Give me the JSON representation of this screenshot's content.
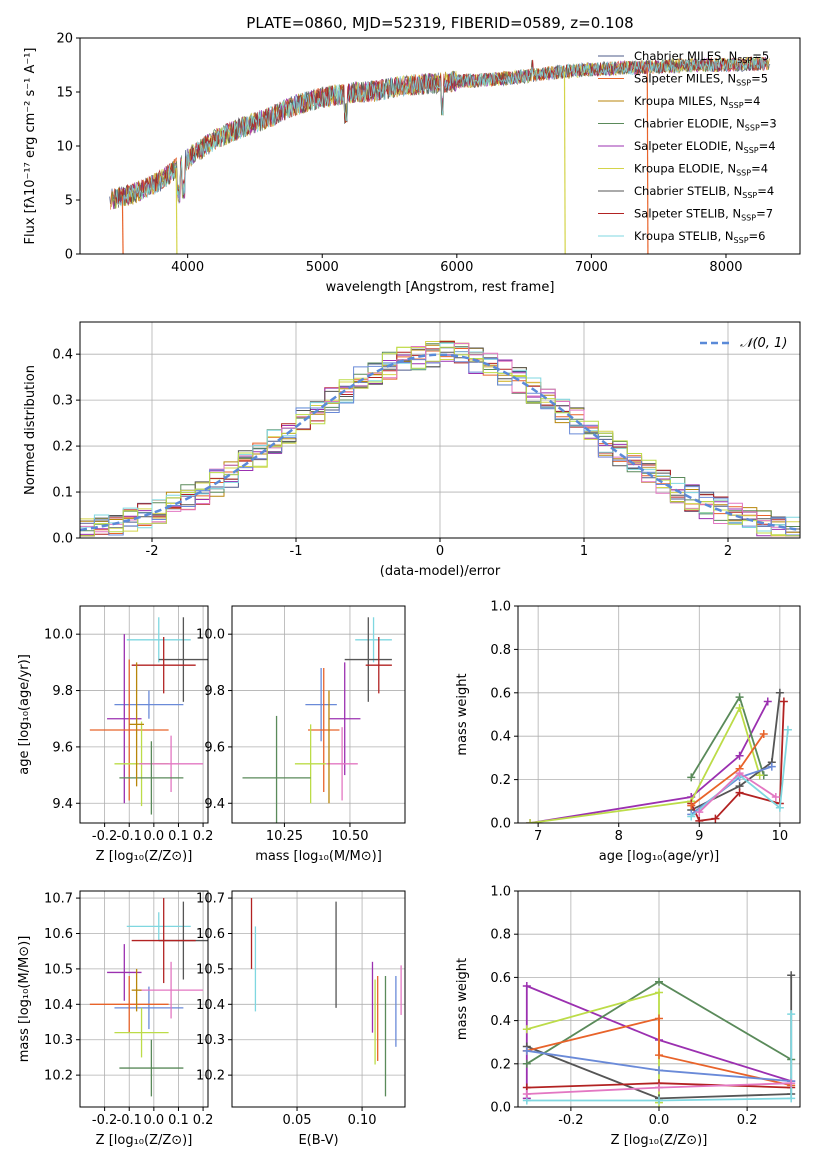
{
  "figure": {
    "title": "PLATE=0860, MJD=52319, FIBERID=0589, z=0.108"
  },
  "chart_data": [
    {
      "type": "line",
      "panel": "spectrum",
      "xlabel": "wavelength [Angstrom, rest frame]",
      "ylabel": "Flux [fλ10⁻¹⁷ erg cm⁻² s⁻¹ A⁻¹]",
      "xlim": [
        3200,
        8550
      ],
      "ylim": [
        0,
        20
      ],
      "xticks": [
        4000,
        5000,
        6000,
        7000,
        8000
      ],
      "yticks": [
        0,
        5,
        10,
        15,
        20
      ],
      "grid": false,
      "legend": "top-right",
      "continuum_x": [
        3420,
        3600,
        3800,
        4000,
        4200,
        4400,
        4600,
        4800,
        5000,
        5200,
        5400,
        5600,
        5800,
        6000,
        6200,
        6400,
        6600,
        6800,
        7000,
        7200,
        7400,
        7600,
        7800,
        8000,
        8200,
        8330
      ],
      "continuum_y": [
        5.0,
        5.6,
        6.8,
        8.8,
        10.6,
        11.7,
        12.6,
        13.8,
        14.5,
        14.9,
        15.1,
        15.6,
        15.8,
        16.0,
        16.1,
        16.3,
        16.6,
        16.9,
        17.1,
        17.2,
        17.3,
        17.4,
        17.5,
        17.5,
        17.6,
        17.6
      ],
      "series": [
        {
          "name": "Chabrier MILES, N_SSP=5",
          "legend_main": "Chabrier MILES, N",
          "sub": "SSP",
          "legend_tail": "=5",
          "color": "#4e5b8a"
        },
        {
          "name": "Salpeter MILES, N_SSP=5",
          "legend_main": "Salpeter MILES, N",
          "sub": "SSP",
          "legend_tail": "=5",
          "color": "#e8632a"
        },
        {
          "name": "Kroupa MILES, N_SSP=4",
          "legend_main": "Kroupa MILES, N",
          "sub": "SSP",
          "legend_tail": "=4",
          "color": "#b8860b"
        },
        {
          "name": "Chabrier ELODIE, N_SSP=3",
          "legend_main": "Chabrier ELODIE, N",
          "sub": "SSP",
          "legend_tail": "=3",
          "color": "#5a8a5a"
        },
        {
          "name": "Salpeter ELODIE, N_SSP=4",
          "legend_main": "Salpeter ELODIE, N",
          "sub": "SSP",
          "legend_tail": "=4",
          "color": "#9b30b0"
        },
        {
          "name": "Kroupa ELODIE, N_SSP=4",
          "legend_main": "Kroupa ELODIE, N",
          "sub": "SSP",
          "legend_tail": "=4",
          "color": "#d4d44a"
        },
        {
          "name": "Chabrier STELIB, N_SSP=4",
          "legend_main": "Chabrier STELIB, N",
          "sub": "SSP",
          "legend_tail": "=4",
          "color": "#555555"
        },
        {
          "name": "Salpeter STELIB, N_SSP=7",
          "legend_main": "Salpeter STELIB, N",
          "sub": "SSP",
          "legend_tail": "=7",
          "color": "#b22222"
        },
        {
          "name": "Kroupa STELIB, N_SSP=6",
          "legend_main": "Kroupa STELIB, N",
          "sub": "SSP",
          "legend_tail": "=6",
          "color": "#7fd7e0"
        }
      ],
      "dropouts": [
        {
          "x": 3515,
          "color": "#e8632a"
        },
        {
          "x": 3915,
          "color": "#d4d44a"
        },
        {
          "x": 6800,
          "color": "#d4d44a"
        },
        {
          "x": 7415,
          "color": "#e8632a"
        }
      ]
    },
    {
      "type": "bar",
      "panel": "residual-histogram",
      "xlabel": "(data-model)/error",
      "ylabel": "Normed distribution",
      "xlim": [
        -2.5,
        2.5
      ],
      "ylim": [
        0,
        0.47
      ],
      "xticks": [
        -2,
        -1,
        0,
        1,
        2
      ],
      "yticks": [
        0.0,
        0.1,
        0.2,
        0.3,
        0.4
      ],
      "grid": true,
      "legend": "top-right",
      "bin_width": 0.1,
      "reference": {
        "label": "𝒩(0, 1)",
        "type": "gaussian",
        "mean": 0,
        "sigma": 1,
        "color": "#5a8ad8"
      },
      "histogram_colors": [
        "#4e5b8a",
        "#e8632a",
        "#b8860b",
        "#5a8a5a",
        "#9b30b0",
        "#d4d44a",
        "#555555",
        "#b22222",
        "#7fd7e0",
        "#e377c2",
        "#6a8ad8",
        "#bcdc48"
      ]
    },
    {
      "type": "scatter",
      "panel": "age-vs-Z",
      "xlabel": "Z [log₁₀(Z/Z⊙)]",
      "ylabel": "age  [log₁₀(age/yr)]",
      "xlim": [
        -0.3,
        0.22
      ],
      "ylim": [
        9.33,
        10.1
      ],
      "xticks": [
        -0.2,
        -0.1,
        0.0,
        0.1,
        0.2
      ],
      "yticks": [
        9.4,
        9.6,
        9.8,
        10.0
      ],
      "grid": true,
      "points": [
        {
          "x": 0.02,
          "xerr": 0.13,
          "y": 9.98,
          "yerr": 0.08,
          "color": "#7fd7e0"
        },
        {
          "x": 0.12,
          "xerr": 0.1,
          "y": 9.91,
          "yerr": 0.15,
          "color": "#555555"
        },
        {
          "x": 0.04,
          "xerr": 0.13,
          "y": 9.89,
          "yerr": 0.1,
          "color": "#b22222"
        },
        {
          "x": -0.02,
          "xerr": 0.14,
          "y": 9.75,
          "yerr": 0.05,
          "color": "#6a8ad8"
        },
        {
          "x": -0.12,
          "xerr": 0.07,
          "y": 9.7,
          "yerr": 0.3,
          "color": "#9b30b0"
        },
        {
          "x": -0.1,
          "xerr": 0.16,
          "y": 9.66,
          "yerr": 0.25,
          "color": "#e8632a"
        },
        {
          "x": -0.05,
          "xerr": 0.11,
          "y": 9.54,
          "yerr": 0.15,
          "color": "#bcdc48"
        },
        {
          "x": 0.07,
          "xerr": 0.13,
          "y": 9.54,
          "yerr": 0.1,
          "color": "#e377c2"
        },
        {
          "x": -0.01,
          "xerr": 0.13,
          "y": 9.49,
          "yerr": 0.13,
          "color": "#5a8a5a"
        },
        {
          "x": -0.07,
          "xerr": 0.03,
          "y": 9.68,
          "yerr": 0.22,
          "color": "#b8860b"
        }
      ]
    },
    {
      "type": "scatter",
      "panel": "age-vs-mass",
      "xlabel": "mass [log₁₀(M/M⊙)]",
      "ylabel": "",
      "xlim": [
        10.05,
        10.71
      ],
      "ylim": [
        9.33,
        10.1
      ],
      "xticks": [
        10.25,
        10.5
      ],
      "xtick_labels": [
        "10.25",
        "10.50"
      ],
      "yticks": [
        9.4,
        9.6,
        9.8,
        10.0
      ],
      "grid": true,
      "points": [
        {
          "x": 10.59,
          "xerr": 0.07,
          "y": 9.98,
          "yerr": 0.08,
          "color": "#7fd7e0"
        },
        {
          "x": 10.57,
          "xerr": 0.09,
          "y": 9.91,
          "yerr": 0.15,
          "color": "#555555"
        },
        {
          "x": 10.61,
          "xerr": 0.05,
          "y": 9.89,
          "yerr": 0.1,
          "color": "#b22222"
        },
        {
          "x": 10.39,
          "xerr": 0.06,
          "y": 9.75,
          "yerr": 0.13,
          "color": "#6a8ad8"
        },
        {
          "x": 10.48,
          "xerr": 0.06,
          "y": 9.7,
          "yerr": 0.2,
          "color": "#9b30b0"
        },
        {
          "x": 10.4,
          "xerr": 0.06,
          "y": 9.66,
          "yerr": 0.22,
          "color": "#e8632a"
        },
        {
          "x": 10.35,
          "xerr": 0.06,
          "y": 9.54,
          "yerr": 0.14,
          "color": "#bcdc48"
        },
        {
          "x": 10.47,
          "xerr": 0.06,
          "y": 9.54,
          "yerr": 0.13,
          "color": "#e377c2"
        },
        {
          "x": 10.22,
          "xerr": 0.13,
          "y": 9.49,
          "yerr": 0.22,
          "color": "#5a8a5a"
        },
        {
          "x": 10.42,
          "xerr": 0.0,
          "y": 9.6,
          "yerr": 0.2,
          "color": "#b8860b"
        }
      ]
    },
    {
      "type": "line",
      "panel": "mass-weight-vs-age",
      "xlabel": "age  [log₁₀(age/yr)]",
      "ylabel": "mass weight",
      "xlim": [
        6.75,
        10.25
      ],
      "ylim": [
        0,
        1
      ],
      "xticks": [
        7,
        8,
        9,
        10
      ],
      "yticks": [
        0.0,
        0.2,
        0.4,
        0.6,
        0.8,
        1.0
      ],
      "grid": true,
      "series": [
        {
          "color": "#9b30b0",
          "x": [
            6.9,
            8.9,
            9.5,
            9.85
          ],
          "y": [
            0.0,
            0.12,
            0.31,
            0.56
          ]
        },
        {
          "color": "#5a8a5a",
          "x": [
            8.9,
            9.5,
            9.8
          ],
          "y": [
            0.21,
            0.58,
            0.22
          ]
        },
        {
          "color": "#bcdc48",
          "x": [
            6.9,
            8.9,
            9.5,
            9.75
          ],
          "y": [
            0.0,
            0.1,
            0.53,
            0.22
          ]
        },
        {
          "color": "#555555",
          "x": [
            8.9,
            9.5,
            9.9,
            10.0
          ],
          "y": [
            0.06,
            0.17,
            0.28,
            0.6
          ]
        },
        {
          "color": "#b22222",
          "x": [
            8.9,
            9.0,
            9.2,
            9.5,
            10.0,
            10.05
          ],
          "y": [
            0.09,
            0.01,
            0.02,
            0.14,
            0.09,
            0.56
          ]
        },
        {
          "color": "#e8632a",
          "x": [
            8.9,
            9.5,
            9.8
          ],
          "y": [
            0.08,
            0.25,
            0.41
          ]
        },
        {
          "color": "#6a8ad8",
          "x": [
            8.9,
            9.5,
            9.9
          ],
          "y": [
            0.04,
            0.21,
            0.26
          ]
        },
        {
          "color": "#7fd7e0",
          "x": [
            8.9,
            9.5,
            10.0,
            10.1
          ],
          "y": [
            0.03,
            0.22,
            0.07,
            0.43
          ]
        },
        {
          "color": "#e377c2",
          "x": [
            9.0,
            9.5,
            9.95
          ],
          "y": [
            0.05,
            0.23,
            0.12
          ]
        }
      ]
    },
    {
      "type": "scatter",
      "panel": "mass-vs-Z",
      "xlabel": "Z [log₁₀(Z/Z⊙)]",
      "ylabel": "mass [log₁₀(M/M⊙)]",
      "xlim": [
        -0.3,
        0.22
      ],
      "ylim": [
        10.11,
        10.72
      ],
      "xticks": [
        -0.2,
        -0.1,
        0.0,
        0.1,
        0.2
      ],
      "yticks": [
        10.2,
        10.3,
        10.4,
        10.5,
        10.6,
        10.7
      ],
      "grid": true,
      "points": [
        {
          "x": 0.02,
          "xerr": 0.13,
          "y": 10.62,
          "yerr": 0.04,
          "color": "#7fd7e0"
        },
        {
          "x": 0.12,
          "xerr": 0.1,
          "y": 10.58,
          "yerr": 0.11,
          "color": "#555555"
        },
        {
          "x": 0.04,
          "xerr": 0.13,
          "y": 10.58,
          "yerr": 0.12,
          "color": "#b22222"
        },
        {
          "x": -0.02,
          "xerr": 0.14,
          "y": 10.39,
          "yerr": 0.06,
          "color": "#6a8ad8"
        },
        {
          "x": -0.12,
          "xerr": 0.07,
          "y": 10.49,
          "yerr": 0.08,
          "color": "#9b30b0"
        },
        {
          "x": -0.1,
          "xerr": 0.16,
          "y": 10.4,
          "yerr": 0.08,
          "color": "#e8632a"
        },
        {
          "x": -0.05,
          "xerr": 0.11,
          "y": 10.32,
          "yerr": 0.07,
          "color": "#bcdc48"
        },
        {
          "x": 0.07,
          "xerr": 0.13,
          "y": 10.44,
          "yerr": 0.08,
          "color": "#e377c2"
        },
        {
          "x": -0.01,
          "xerr": 0.13,
          "y": 10.22,
          "yerr": 0.08,
          "color": "#5a8a5a"
        },
        {
          "x": -0.07,
          "xerr": 0.02,
          "y": 10.44,
          "yerr": 0.06,
          "color": "#b8860b"
        }
      ]
    },
    {
      "type": "scatter",
      "panel": "mass-vs-EBV",
      "xlabel": "E(B-V)",
      "ylabel": "",
      "xlim": [
        0.0,
        0.133
      ],
      "ylim": [
        10.11,
        10.72
      ],
      "xticks": [
        0.05,
        0.1
      ],
      "xtick_labels": [
        "0.05",
        "0.10"
      ],
      "yticks": [
        10.2,
        10.3,
        10.4,
        10.5,
        10.6,
        10.7
      ],
      "grid": true,
      "points": [
        {
          "x": 0.015,
          "y": 10.6,
          "yerr": 0.1,
          "color": "#b22222"
        },
        {
          "x": 0.018,
          "y": 10.5,
          "yerr": 0.12,
          "color": "#7fd7e0"
        },
        {
          "x": 0.08,
          "y": 10.54,
          "yerr": 0.15,
          "color": "#555555"
        },
        {
          "x": 0.108,
          "y": 10.42,
          "yerr": 0.1,
          "color": "#9b30b0"
        },
        {
          "x": 0.11,
          "y": 10.35,
          "yerr": 0.12,
          "color": "#bcdc48"
        },
        {
          "x": 0.112,
          "y": 10.36,
          "yerr": 0.12,
          "color": "#e8632a"
        },
        {
          "x": 0.118,
          "y": 10.31,
          "yerr": 0.17,
          "color": "#5a8a5a"
        },
        {
          "x": 0.126,
          "y": 10.38,
          "yerr": 0.1,
          "color": "#6a8ad8"
        },
        {
          "x": 0.13,
          "y": 10.44,
          "yerr": 0.07,
          "color": "#e377c2"
        }
      ]
    },
    {
      "type": "line",
      "panel": "mass-weight-vs-Z",
      "xlabel": "Z [log₁₀(Z/Z⊙)]",
      "ylabel": "mass weight",
      "xlim": [
        -0.32,
        0.32
      ],
      "ylim": [
        0,
        1
      ],
      "xticks": [
        -0.2,
        0.0,
        0.2
      ],
      "yticks": [
        0.0,
        0.2,
        0.4,
        0.6,
        0.8,
        1.0
      ],
      "grid": true,
      "series": [
        {
          "color": "#9b30b0",
          "x": [
            -0.3,
            -0.3,
            0.0,
            0.3
          ],
          "y": [
            0.04,
            0.56,
            0.31,
            0.12
          ]
        },
        {
          "color": "#5a8a5a",
          "x": [
            -0.3,
            0.0,
            0.3
          ],
          "y": [
            0.2,
            0.58,
            0.22
          ]
        },
        {
          "color": "#bcdc48",
          "x": [
            -0.3,
            0.0,
            0.0
          ],
          "y": [
            0.36,
            0.53,
            0.02
          ]
        },
        {
          "color": "#555555",
          "x": [
            -0.3,
            0.0,
            0.3,
            0.3
          ],
          "y": [
            0.28,
            0.04,
            0.06,
            0.61
          ]
        },
        {
          "color": "#b22222",
          "x": [
            -0.3,
            0.0,
            0.3
          ],
          "y": [
            0.09,
            0.11,
            0.09
          ]
        },
        {
          "color": "#e8632a",
          "x": [
            -0.3,
            0.0,
            0.0,
            0.3
          ],
          "y": [
            0.26,
            0.41,
            0.24,
            0.1
          ]
        },
        {
          "color": "#6a8ad8",
          "x": [
            -0.3,
            0.0,
            0.3
          ],
          "y": [
            0.26,
            0.17,
            0.12
          ]
        },
        {
          "color": "#7fd7e0",
          "x": [
            -0.3,
            0.0,
            0.3,
            0.3
          ],
          "y": [
            0.03,
            0.03,
            0.04,
            0.43
          ]
        },
        {
          "color": "#e377c2",
          "x": [
            -0.3,
            0.0,
            0.3
          ],
          "y": [
            0.06,
            0.09,
            0.11
          ]
        }
      ]
    }
  ]
}
